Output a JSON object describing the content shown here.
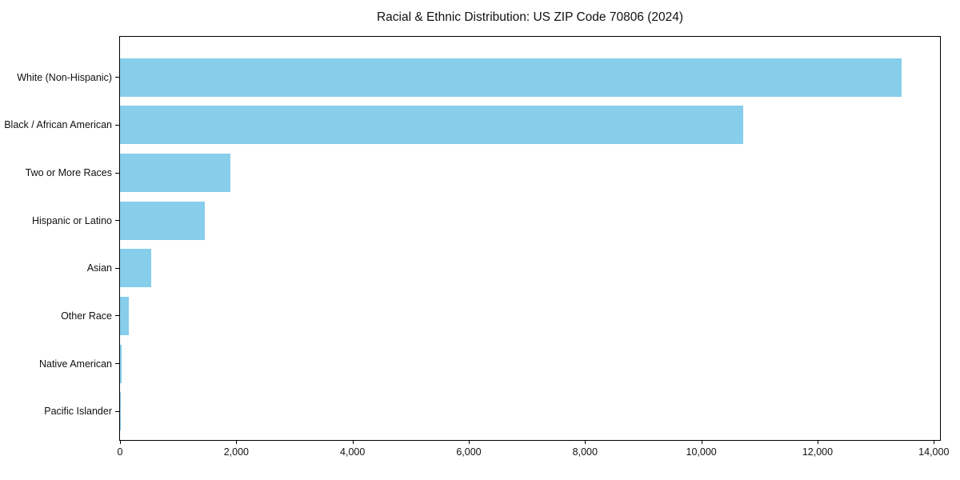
{
  "chart_data": {
    "type": "bar",
    "orientation": "horizontal",
    "title": "Racial & Ethnic Distribution: US ZIP Code 70806 (2024)",
    "xlabel": "",
    "ylabel": "",
    "categories": [
      "White (Non-Hispanic)",
      "Black / African American",
      "Two or More Races",
      "Hispanic or Latino",
      "Asian",
      "Other Race",
      "Native American",
      "Pacific Islander"
    ],
    "values": [
      13440,
      10720,
      1905,
      1465,
      535,
      155,
      25,
      8
    ],
    "xlim": [
      0,
      14106
    ],
    "x_ticks": [
      {
        "value": 0,
        "label": "0"
      },
      {
        "value": 2000,
        "label": "2,000"
      },
      {
        "value": 4000,
        "label": "4,000"
      },
      {
        "value": 6000,
        "label": "6,000"
      },
      {
        "value": 8000,
        "label": "8,000"
      },
      {
        "value": 10000,
        "label": "10,000"
      },
      {
        "value": 12000,
        "label": "12,000"
      },
      {
        "value": 14000,
        "label": "14,000"
      }
    ],
    "bar_color": "#87CEEB",
    "axis_color": "#000000",
    "text_color": "#111111",
    "grid": false,
    "legend": false
  }
}
